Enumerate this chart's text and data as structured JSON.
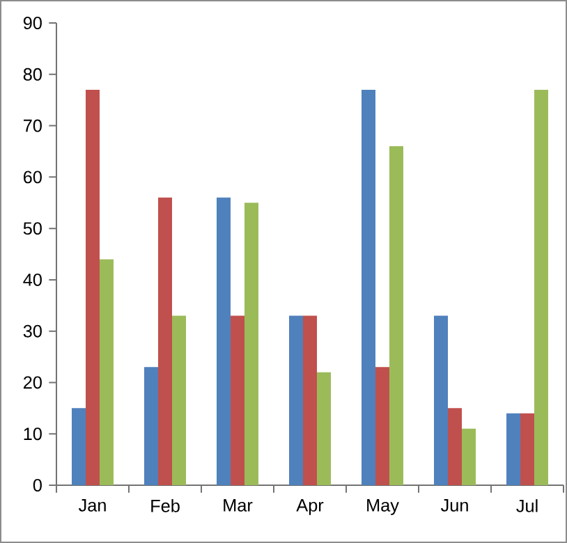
{
  "chart_data": {
    "type": "bar",
    "categories": [
      "Jan",
      "Feb",
      "Mar",
      "Apr",
      "May",
      "Jun",
      "Jul"
    ],
    "series": [
      {
        "color": "#4f81bd",
        "values": [
          15,
          23,
          56,
          33,
          77,
          33,
          14
        ]
      },
      {
        "color": "#c0504d",
        "values": [
          77,
          56,
          33,
          33,
          23,
          15,
          14
        ]
      },
      {
        "color": "#9bbb59",
        "values": [
          44,
          33,
          55,
          22,
          66,
          11,
          77
        ]
      }
    ],
    "ylim": [
      0,
      90
    ],
    "yticks": [
      0,
      10,
      20,
      30,
      40,
      50,
      60,
      70,
      80,
      90
    ],
    "grid": false
  }
}
